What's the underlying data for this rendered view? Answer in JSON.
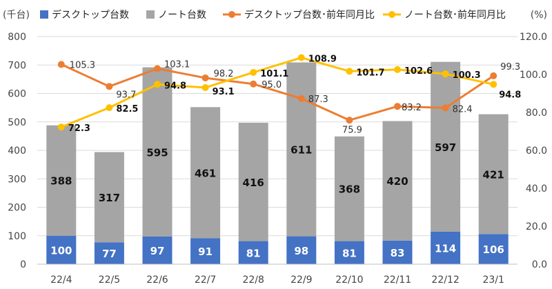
{
  "chart_data": {
    "type": "bar",
    "stacked": true,
    "categories": [
      "22/4",
      "22/5",
      "22/6",
      "22/7",
      "22/8",
      "22/9",
      "22/10",
      "22/11",
      "22/12",
      "23/1"
    ],
    "y_unit_label": "(千台)",
    "y2_unit_label": "(%)",
    "ylim": [
      0,
      800
    ],
    "y_ticks": [
      "0",
      "100",
      "200",
      "300",
      "400",
      "500",
      "600",
      "700",
      "800"
    ],
    "y2lim": [
      0,
      120
    ],
    "y2_ticks": [
      "0.0",
      "20.0",
      "40.0",
      "60.0",
      "80.0",
      "100.0",
      "120.0"
    ],
    "grid": true,
    "legend_position": "top",
    "series": [
      {
        "name": "デスクトップ台数",
        "kind": "bar",
        "axis": "left",
        "color": "#4472c4",
        "values": [
          100,
          77,
          97,
          91,
          81,
          98,
          81,
          83,
          114,
          106
        ],
        "labels": [
          "100",
          "77",
          "97",
          "91",
          "81",
          "98",
          "81",
          "83",
          "114",
          "106"
        ]
      },
      {
        "name": "ノート台数",
        "kind": "bar",
        "axis": "left",
        "color": "#a5a5a5",
        "values": [
          388,
          317,
          595,
          461,
          416,
          611,
          368,
          420,
          597,
          421
        ],
        "labels": [
          "388",
          "317",
          "595",
          "461",
          "416",
          "611",
          "368",
          "420",
          "597",
          "421"
        ]
      },
      {
        "name": "デスクトップ台数･前年同月比",
        "kind": "line",
        "axis": "right",
        "color": "#ed7d31",
        "values": [
          105.3,
          93.7,
          103.1,
          98.2,
          95.0,
          87.3,
          75.9,
          83.2,
          82.4,
          99.3
        ],
        "labels": [
          "105.3",
          "93.7",
          "103.1",
          "98.2",
          "95.0",
          "87.3",
          "75.9",
          "83.2",
          "82.4",
          "99.3"
        ]
      },
      {
        "name": "ノート台数･前年同月比",
        "kind": "line",
        "axis": "right",
        "color": "#ffc000",
        "values": [
          72.3,
          82.5,
          94.8,
          93.1,
          101.1,
          108.9,
          101.7,
          102.6,
          100.3,
          94.8
        ],
        "labels": [
          "72.3",
          "82.5",
          "94.8",
          "93.1",
          "101.1",
          "108.9",
          "101.7",
          "102.6",
          "100.3",
          "94.8"
        ]
      }
    ]
  }
}
